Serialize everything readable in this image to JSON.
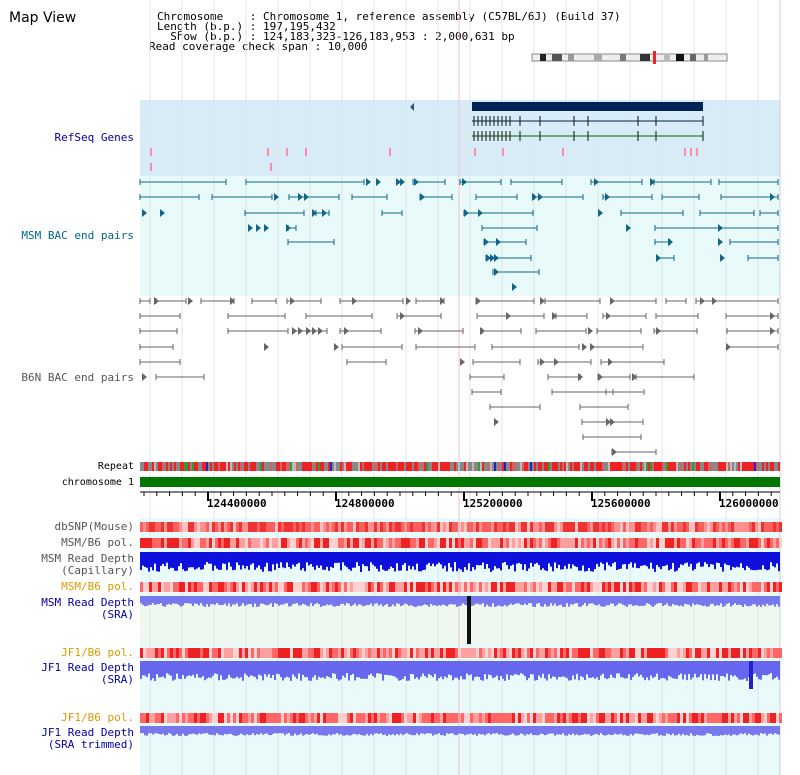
{
  "view_title": "Map View",
  "header": {
    "chromosome_line": "Chromosome    : Chromosome 1, reference assembly (C57BL/6J) (Build 37)",
    "length_line": "Length (b.p.) : 197,195,432",
    "show_line": "  Show (b.p.) : 124,183,323-126,183,953 : 2,000,631 bp",
    "coverage_line": "Read coverage check span : 10,000"
  },
  "tracks": {
    "refseq": "RefSeq Genes",
    "msm_bac": "MSM BAC end pairs",
    "b6n_bac": "B6N BAC end pairs",
    "repeat": "Repeat",
    "chromosome": "chromosome 1",
    "dbsnp": "dbSNP(Mouse)",
    "msm_b6_pol_1": "MSM/B6 pol.",
    "msm_read_depth_cap_1": "MSM Read Depth",
    "msm_read_depth_cap_2": "(Capillary)",
    "msm_b6_pol_2": "MSM/B6 pol.",
    "msm_read_depth_sra_1": "MSM Read Depth",
    "msm_read_depth_sra_2": "(SRA)",
    "jf1_b6_pol_1": "JF1/B6 pol.",
    "jf1_read_depth_sra_1": "JF1 Read Depth",
    "jf1_read_depth_sra_2": "(SRA)",
    "jf1_b6_pol_2": "JF1/B6 pol.",
    "jf1_read_depth_trim_1": "JF1 Read Depth",
    "jf1_read_depth_trim_2": "(SRA trimmed)"
  },
  "ruler": {
    "ticks": [
      "124400000",
      "124800000",
      "125200000",
      "125600000",
      "126000000"
    ]
  },
  "colors": {
    "refseq_bg": "#d8ecf8",
    "track_bg": "#e9fafa",
    "gene_dark": "#002255",
    "gene_green": "#006600",
    "msm_bac": "#116688",
    "b6n_bac": "#666666",
    "chromosome_bar": "#007700",
    "depth_blue": "#1010dd",
    "depth_lilac": "#7777ee"
  }
}
